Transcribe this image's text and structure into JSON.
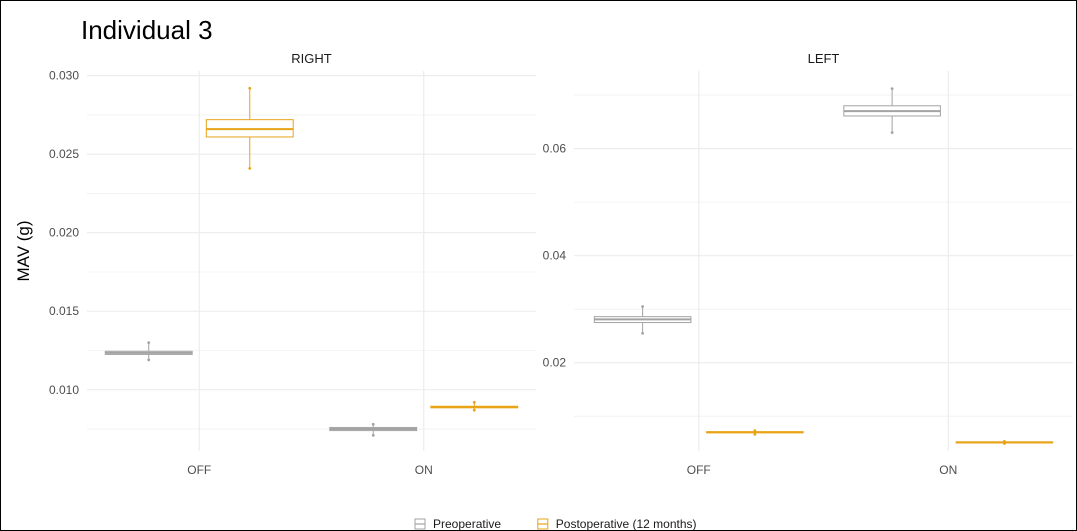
{
  "figure": {
    "title": "Individual 3",
    "ylabel": "MAV (g)"
  },
  "colors": {
    "preoperative": "#a3a3a3",
    "postoperative": "#e8a317",
    "grid": "#ebebeb",
    "text": "#4d4d4d"
  },
  "legend": {
    "position": "bottom",
    "items": [
      {
        "label": "Preoperative",
        "color": "#a3a3a3"
      },
      {
        "label": "Postoperative (12 months)",
        "color": "#e8a317"
      }
    ]
  },
  "chart_data": [
    {
      "type": "box",
      "title": "RIGHT",
      "categories": [
        "OFF",
        "ON"
      ],
      "ylim": [
        0.0061,
        0.0303
      ],
      "yticks": [
        0.01,
        0.015,
        0.02,
        0.025,
        0.03
      ],
      "yticklabels": [
        "0.010",
        "0.015",
        "0.020",
        "0.025",
        "0.030"
      ],
      "grid": true,
      "series": [
        {
          "name": "Preoperative",
          "color": "#a3a3a3",
          "boxes": [
            {
              "category": "OFF",
              "min": 0.0119,
              "q1": 0.01225,
              "median": 0.01235,
              "q3": 0.01245,
              "max": 0.013
            },
            {
              "category": "ON",
              "min": 0.0071,
              "q1": 0.0074,
              "median": 0.0075,
              "q3": 0.0076,
              "max": 0.0078
            }
          ]
        },
        {
          "name": "Postoperative (12 months)",
          "color": "#e8a317",
          "boxes": [
            {
              "category": "OFF",
              "min": 0.0241,
              "q1": 0.0261,
              "median": 0.0266,
              "q3": 0.0272,
              "max": 0.0292
            },
            {
              "category": "ON",
              "min": 0.0087,
              "q1": 0.00885,
              "median": 0.0089,
              "q3": 0.00895,
              "max": 0.0092
            }
          ]
        }
      ]
    },
    {
      "type": "box",
      "title": "LEFT",
      "categories": [
        "OFF",
        "ON"
      ],
      "ylim": [
        0.0035,
        0.0745
      ],
      "yticks": [
        0.02,
        0.04,
        0.06
      ],
      "yticklabels": [
        "0.02",
        "0.04",
        "0.06"
      ],
      "grid": true,
      "series": [
        {
          "name": "Preoperative",
          "color": "#a3a3a3",
          "boxes": [
            {
              "category": "OFF",
              "min": 0.0255,
              "q1": 0.0275,
              "median": 0.0281,
              "q3": 0.0286,
              "max": 0.0305
            },
            {
              "category": "ON",
              "min": 0.063,
              "q1": 0.0661,
              "median": 0.067,
              "q3": 0.068,
              "max": 0.0712
            }
          ]
        },
        {
          "name": "Postoperative (12 months)",
          "color": "#e8a317",
          "boxes": [
            {
              "category": "OFF",
              "min": 0.0066,
              "q1": 0.0069,
              "median": 0.007,
              "q3": 0.0071,
              "max": 0.0073
            },
            {
              "category": "ON",
              "min": 0.0049,
              "q1": 0.005,
              "median": 0.0051,
              "q3": 0.0052,
              "max": 0.0053
            }
          ]
        }
      ]
    }
  ]
}
